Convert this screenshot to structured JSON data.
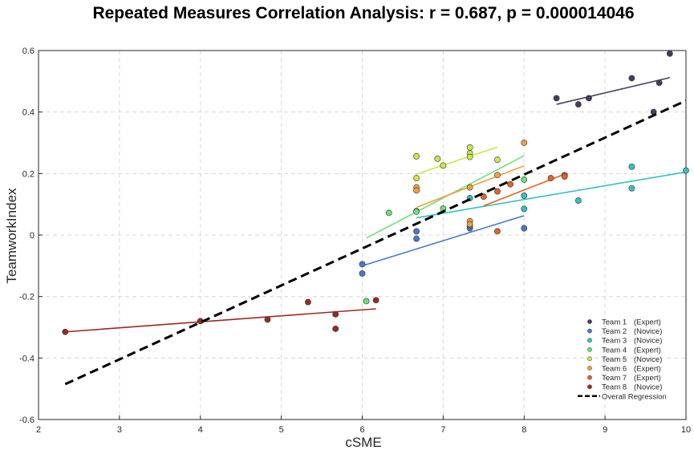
{
  "chart_data": {
    "type": "scatter",
    "title": "Repeated Measures Correlation Analysis: r = 0.687, p = 0.000014046",
    "xlabel": "cSME",
    "ylabel": "TeamworkIndex",
    "xlim": [
      2,
      10
    ],
    "ylim": [
      -0.6,
      0.6
    ],
    "xticks": [
      2,
      3,
      4,
      5,
      6,
      7,
      8,
      9,
      10
    ],
    "xtick_labels": [
      "2",
      "3",
      "4",
      "5",
      "6",
      "7",
      "8",
      "9",
      "10"
    ],
    "yticks": [
      -0.6,
      -0.4,
      -0.2,
      0,
      0.2,
      0.4,
      0.6
    ],
    "ytick_labels": [
      "-0.6",
      "-0.4",
      "-0.2",
      "0",
      "0.2",
      "0.4",
      "0.6"
    ],
    "grid": true,
    "legend_position": "bottom-right",
    "series": [
      {
        "name": "Team 1",
        "group": "(Expert)",
        "color": "#4a3a5e",
        "points": [
          [
            8.4,
            0.445
          ],
          [
            8.67,
            0.425
          ],
          [
            8.8,
            0.445
          ],
          [
            9.33,
            0.51
          ],
          [
            9.6,
            0.4
          ],
          [
            9.67,
            0.495
          ],
          [
            9.8,
            0.59
          ]
        ],
        "fit": [
          [
            8.4,
            0.425
          ],
          [
            9.8,
            0.512
          ]
        ]
      },
      {
        "name": "Team 2",
        "group": "(Novice)",
        "color": "#4a78c8",
        "points": [
          [
            6.0,
            -0.095
          ],
          [
            6.0,
            -0.125
          ],
          [
            6.67,
            0.012
          ],
          [
            6.67,
            -0.012
          ],
          [
            7.33,
            0.022
          ],
          [
            7.33,
            0.03
          ],
          [
            8.0,
            0.022
          ]
        ],
        "fit": [
          [
            6.0,
            -0.1
          ],
          [
            8.0,
            0.063
          ]
        ]
      },
      {
        "name": "Team 3",
        "group": "(Novice)",
        "color": "#35c0c0",
        "points": [
          [
            6.67,
            0.078
          ],
          [
            7.33,
            0.12
          ],
          [
            8.0,
            0.128
          ],
          [
            8.0,
            0.085
          ],
          [
            8.67,
            0.112
          ],
          [
            9.33,
            0.222
          ],
          [
            9.33,
            0.152
          ],
          [
            10.0,
            0.21
          ]
        ],
        "fit": [
          [
            6.67,
            0.056
          ],
          [
            10.0,
            0.205
          ]
        ]
      },
      {
        "name": "Team 4",
        "group": "(Expert)",
        "color": "#6ee07a",
        "points": [
          [
            6.05,
            -0.215
          ],
          [
            6.33,
            0.072
          ],
          [
            6.67,
            0.076
          ],
          [
            7.0,
            0.086
          ],
          [
            8.0,
            0.18
          ]
        ],
        "fit": [
          [
            6.05,
            -0.01
          ],
          [
            8.0,
            0.258
          ]
        ]
      },
      {
        "name": "Team 5",
        "group": "(Novice)",
        "color": "#c8e84a",
        "points": [
          [
            6.67,
            0.256
          ],
          [
            6.67,
            0.185
          ],
          [
            6.93,
            0.248
          ],
          [
            7.0,
            0.226
          ],
          [
            7.33,
            0.285
          ],
          [
            7.33,
            0.266
          ],
          [
            7.33,
            0.254
          ],
          [
            7.67,
            0.245
          ]
        ],
        "fit": [
          [
            6.67,
            0.198
          ],
          [
            7.67,
            0.286
          ]
        ]
      },
      {
        "name": "Team 6",
        "group": "(Expert)",
        "color": "#f0a040",
        "points": [
          [
            6.67,
            0.155
          ],
          [
            6.67,
            0.145
          ],
          [
            7.33,
            0.155
          ],
          [
            7.33,
            0.045
          ],
          [
            7.33,
            0.035
          ],
          [
            7.67,
            0.195
          ],
          [
            8.0,
            0.3
          ]
        ],
        "fit": [
          [
            6.67,
            0.09
          ],
          [
            8.0,
            0.225
          ]
        ]
      },
      {
        "name": "Team 7",
        "group": "(Expert)",
        "color": "#e2632a",
        "points": [
          [
            7.5,
            0.125
          ],
          [
            7.67,
            0.012
          ],
          [
            7.67,
            0.142
          ],
          [
            7.83,
            0.165
          ],
          [
            8.33,
            0.185
          ],
          [
            8.5,
            0.195
          ],
          [
            8.5,
            0.19
          ]
        ],
        "fit": [
          [
            7.5,
            0.095
          ],
          [
            8.5,
            0.198
          ]
        ]
      },
      {
        "name": "Team 8",
        "group": "(Novice)",
        "color": "#9a2a22",
        "points": [
          [
            2.33,
            -0.315
          ],
          [
            4.0,
            -0.28
          ],
          [
            4.83,
            -0.275
          ],
          [
            5.33,
            -0.218
          ],
          [
            5.67,
            -0.258
          ],
          [
            5.67,
            -0.305
          ],
          [
            6.17,
            -0.212
          ]
        ],
        "fit": [
          [
            2.33,
            -0.315
          ],
          [
            6.17,
            -0.24
          ]
        ]
      }
    ],
    "overall_regression": {
      "name": "Overall Regression",
      "color": "#000000",
      "fit": [
        [
          2.33,
          -0.485
        ],
        [
          10.0,
          0.437
        ]
      ]
    }
  }
}
